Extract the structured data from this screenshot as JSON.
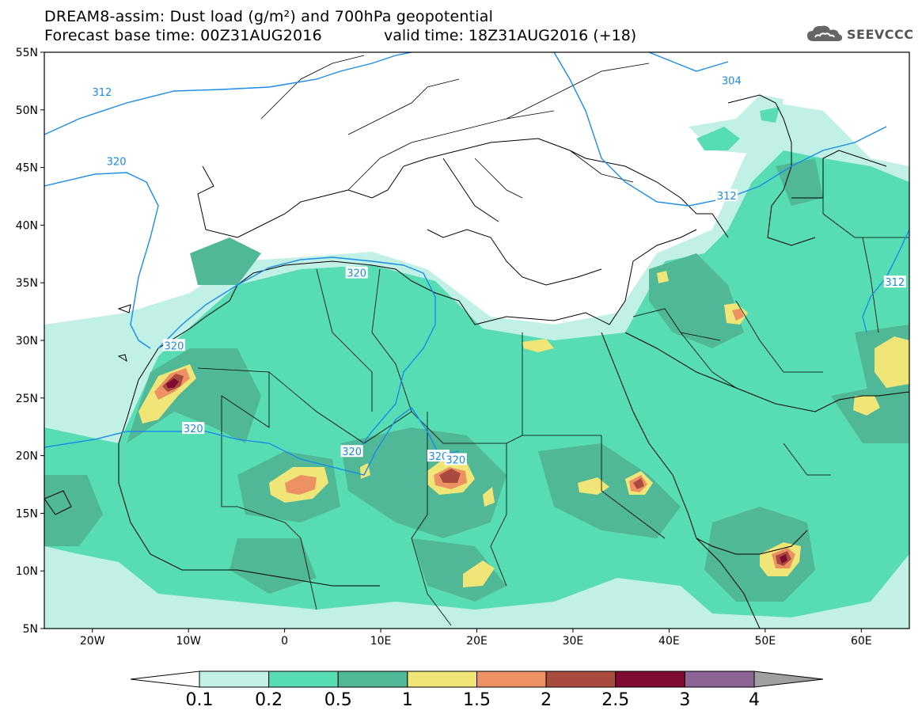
{
  "header": {
    "title_line1": "DREAM8-assim: Dust load (g/m²) and 700hPa geopotential",
    "title_line2": "Forecast base time: 00Z31AUG2016",
    "valid_time": "valid time: 18Z31AUG2016 (+18)",
    "logo_text": "SEEVCCC",
    "logo_icon": "cloud-icon"
  },
  "map": {
    "projection": "lat-lon",
    "lon_range": [
      -25,
      65
    ],
    "lat_range": [
      5,
      55
    ],
    "lon_ticks": [
      {
        "value": -20,
        "label": "20W"
      },
      {
        "value": -10,
        "label": "10W"
      },
      {
        "value": 0,
        "label": "0"
      },
      {
        "value": 10,
        "label": "10E"
      },
      {
        "value": 20,
        "label": "20E"
      },
      {
        "value": 30,
        "label": "30E"
      },
      {
        "value": 40,
        "label": "40E"
      },
      {
        "value": 50,
        "label": "50E"
      },
      {
        "value": 60,
        "label": "60E"
      }
    ],
    "lat_ticks": [
      {
        "value": 55,
        "label": "55N"
      },
      {
        "value": 50,
        "label": "50N"
      },
      {
        "value": 45,
        "label": "45N"
      },
      {
        "value": 40,
        "label": "40N"
      },
      {
        "value": 35,
        "label": "35N"
      },
      {
        "value": 30,
        "label": "30N"
      },
      {
        "value": 25,
        "label": "25N"
      },
      {
        "value": 20,
        "label": "20N"
      },
      {
        "value": 15,
        "label": "15N"
      },
      {
        "value": 10,
        "label": "10N"
      },
      {
        "value": 5,
        "label": "5N"
      }
    ],
    "geopotential_contour_labels": [
      {
        "label": "312",
        "lon": -19,
        "lat": 51.5
      },
      {
        "label": "304",
        "lon": 46.5,
        "lat": 52.5
      },
      {
        "label": "320",
        "lon": -17.5,
        "lat": 45.5
      },
      {
        "label": "312",
        "lon": 46,
        "lat": 42.5
      },
      {
        "label": "320",
        "lon": 7.5,
        "lat": 35.8
      },
      {
        "label": "312",
        "lon": 63.5,
        "lat": 35
      },
      {
        "label": "320",
        "lon": -11.5,
        "lat": 29.5
      },
      {
        "label": "320",
        "lon": -9.5,
        "lat": 22.3
      },
      {
        "label": "320",
        "lon": 7,
        "lat": 20.3
      },
      {
        "label": "320",
        "lon": 16,
        "lat": 19.9
      },
      {
        "label": "320",
        "lon": 17.8,
        "lat": 19.6
      }
    ]
  },
  "colorbar": {
    "levels": [
      "0.1",
      "0.2",
      "0.5",
      "1",
      "1.5",
      "2",
      "2.5",
      "3",
      "4"
    ],
    "colors": [
      "#c0f0e6",
      "#58dcb4",
      "#50b896",
      "#f0e678",
      "#eb9164",
      "#a94b3c",
      "#7f0a32",
      "#8c6496"
    ],
    "under_color": "#ffffff",
    "over_color": "#a0a0a0"
  },
  "dust_colors": {
    "level_0_1": "#c0f0e6",
    "level_0_2": "#58dcb4",
    "level_0_5": "#50b896",
    "level_1": "#f0e678",
    "level_1_5": "#eb9164",
    "level_2": "#a94b3c",
    "level_2_5": "#7f0a32",
    "contour_line": "#1a8ce6"
  }
}
